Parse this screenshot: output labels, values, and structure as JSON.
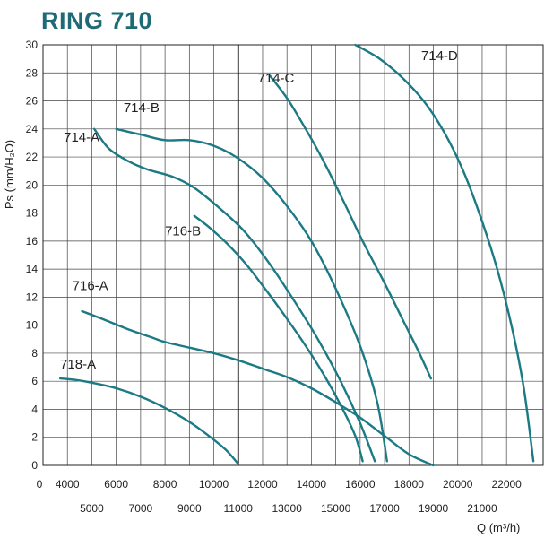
{
  "chart_data": {
    "type": "line",
    "title": "RING 710",
    "xlabel": "Q (m³/h)",
    "ylabel": "Ps (mm/H₂O)",
    "xlim": [
      3000,
      23500
    ],
    "ylim": [
      0,
      30
    ],
    "x_ticks_upper": [
      "0",
      "4000",
      "6000",
      "8000",
      "10000",
      "12000",
      "14000",
      "16000",
      "18000",
      "20000",
      "22000"
    ],
    "x_ticks_lower": [
      "5000",
      "7000",
      "9000",
      "11000",
      "13000",
      "15000",
      "17000",
      "19000",
      "21000"
    ],
    "y_ticks": [
      "0",
      "2",
      "4",
      "6",
      "8",
      "10",
      "12",
      "14",
      "16",
      "18",
      "20",
      "22",
      "24",
      "26",
      "28",
      "30"
    ],
    "colors": {
      "curve": "#1b7a84",
      "grid": "#444444",
      "title": "#1e6b78"
    },
    "series": [
      {
        "name": "714-A",
        "x": [
          5100,
          5700,
          6500,
          7300,
          8300,
          9200,
          10200,
          11200,
          12200,
          13200,
          14200,
          15200,
          16000,
          16600
        ],
        "y": [
          24,
          22.6,
          21.7,
          21.1,
          20.6,
          19.8,
          18.4,
          16.8,
          14.6,
          12,
          9.2,
          6,
          3,
          0.3
        ]
      },
      {
        "name": "714-B",
        "x": [
          6000,
          7000,
          8000,
          9000,
          10000,
          11000,
          12000,
          13000,
          14000,
          15000,
          16000,
          16700,
          17100
        ],
        "y": [
          24,
          23.6,
          23.2,
          23.2,
          22.8,
          21.9,
          20.5,
          18.5,
          16,
          12.6,
          8.5,
          4.5,
          0.3
        ]
      },
      {
        "name": "714-C",
        "x": [
          12300,
          13000,
          13700,
          14500,
          15300,
          16100,
          17000,
          17800,
          18400,
          18900
        ],
        "y": [
          27.8,
          26.2,
          24.2,
          21.7,
          18.9,
          16,
          13,
          10.2,
          8.1,
          6.2
        ]
      },
      {
        "name": "714-D",
        "x": [
          15800,
          16800,
          17700,
          18600,
          19400,
          20200,
          20900,
          21600,
          22200,
          22700,
          23100
        ],
        "y": [
          30,
          29,
          27.7,
          26,
          23.9,
          21.1,
          17.9,
          14.1,
          10,
          5.6,
          0.3
        ]
      },
      {
        "name": "716-A",
        "x": [
          4600,
          5500,
          6500,
          7500,
          8000,
          9000,
          10000,
          11000,
          12000,
          13000,
          14000,
          15000,
          16000,
          17000,
          18000,
          19000,
          19800,
          20500
        ],
        "y": [
          11,
          10.4,
          9.7,
          9.1,
          8.8,
          8.4,
          8,
          7.5,
          6.9,
          6.3,
          5.5,
          4.5,
          3.4,
          2.1,
          0.8,
          0,
          0,
          0
        ]
      },
      {
        "name": "716-B",
        "x": [
          9200,
          9800,
          10500,
          11300,
          12100,
          12900,
          13700,
          14500,
          15200,
          15800,
          16100
        ],
        "y": [
          17.8,
          17,
          15.9,
          14.4,
          12.6,
          10.7,
          8.7,
          6.5,
          4.3,
          2.1,
          0.3
        ]
      },
      {
        "name": "718-A",
        "x": [
          3700,
          4300,
          5000,
          6000,
          7000,
          8000,
          9000,
          9800,
          10500,
          11000
        ],
        "y": [
          6.2,
          6.1,
          5.9,
          5.5,
          4.9,
          4.1,
          3.1,
          2.1,
          1.1,
          0.1
        ]
      }
    ],
    "annotations": [
      {
        "text": "714-A",
        "x": 3850,
        "y": 23.1
      },
      {
        "text": "714-B",
        "x": 6300,
        "y": 25.2
      },
      {
        "text": "714-C",
        "x": 11800,
        "y": 27.3
      },
      {
        "text": "714-D",
        "x": 18500,
        "y": 28.9
      },
      {
        "text": "716-A",
        "x": 4200,
        "y": 12.5
      },
      {
        "text": "716-B",
        "x": 8000,
        "y": 16.4
      },
      {
        "text": "718-A",
        "x": 3700,
        "y": 6.9
      }
    ]
  }
}
